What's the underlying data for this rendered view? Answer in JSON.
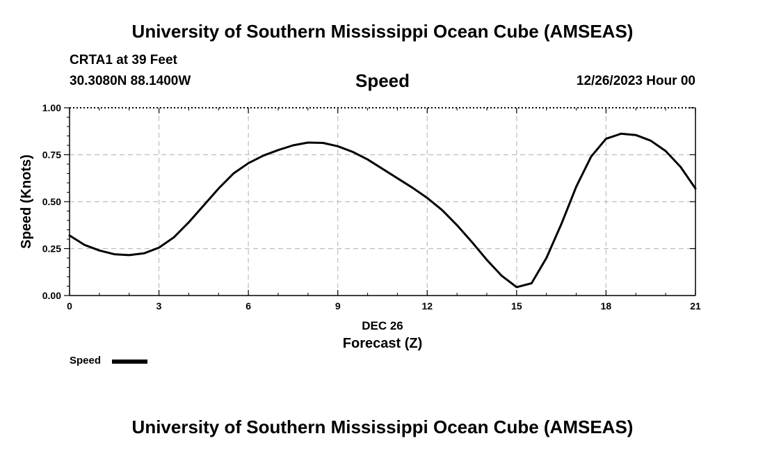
{
  "header": {
    "title": "University of Southern Mississippi Ocean Cube (AMSEAS)",
    "station": "CRTA1 at 39 Feet",
    "coordinates": "30.3080N  88.1400W",
    "date_hour": "12/26/2023 Hour 00",
    "footer_title": "University of Southern Mississippi Ocean Cube (AMSEAS)"
  },
  "legend": {
    "label": "Speed",
    "color": "#000000"
  },
  "chart_data": {
    "type": "line",
    "title": "Speed",
    "xlabel": "Forecast (Z)",
    "xlabel_date": "DEC 26",
    "ylabel": "Speed (Knots)",
    "xlim": [
      0,
      21
    ],
    "ylim": [
      0,
      1
    ],
    "x_ticks": [
      0,
      3,
      6,
      9,
      12,
      15,
      18,
      21
    ],
    "x_tick_labels": [
      "0",
      "3",
      "6",
      "9",
      "12",
      "15",
      "18",
      "21"
    ],
    "y_ticks": [
      0,
      0.25,
      0.5,
      0.75,
      1.0
    ],
    "y_tick_labels": [
      "0.00",
      "0.25",
      "0.50",
      "0.75",
      "1.00"
    ],
    "grid": true,
    "series": [
      {
        "name": "Speed",
        "color": "#000000",
        "x": [
          0,
          0.5,
          1,
          1.5,
          2,
          2.5,
          3,
          3.5,
          4,
          4.5,
          5,
          5.5,
          6,
          6.5,
          7,
          7.5,
          8,
          8.5,
          9,
          9.5,
          10,
          10.5,
          11,
          11.5,
          12,
          12.5,
          13,
          13.5,
          14,
          14.5,
          15,
          15.5,
          16,
          16.5,
          17,
          17.5,
          18,
          18.5,
          19,
          19.5,
          20,
          20.5,
          21
        ],
        "values": [
          0.32,
          0.27,
          0.24,
          0.22,
          0.215,
          0.225,
          0.255,
          0.31,
          0.39,
          0.48,
          0.57,
          0.65,
          0.705,
          0.745,
          0.775,
          0.8,
          0.815,
          0.813,
          0.795,
          0.765,
          0.725,
          0.675,
          0.625,
          0.575,
          0.52,
          0.455,
          0.375,
          0.285,
          0.19,
          0.105,
          0.045,
          0.065,
          0.2,
          0.38,
          0.58,
          0.74,
          0.835,
          0.862,
          0.855,
          0.825,
          0.77,
          0.685,
          0.57
        ]
      }
    ]
  }
}
